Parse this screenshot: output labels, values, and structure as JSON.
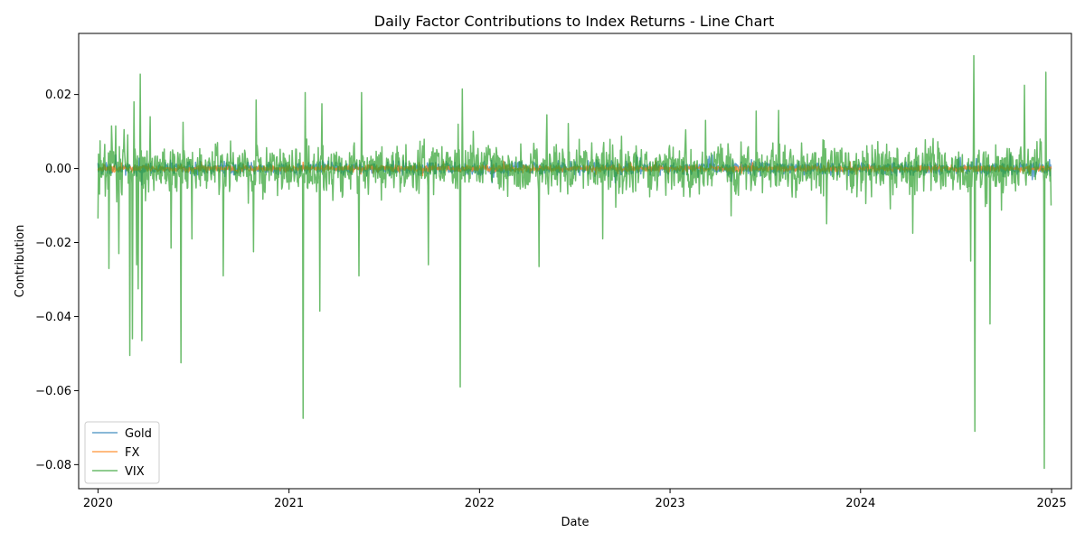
{
  "chart_data": {
    "type": "line",
    "title": "Daily Factor Contributions to Index Returns - Line Chart",
    "xlabel": "Date",
    "ylabel": "Contribution",
    "xlim": [
      "2019-11-25",
      "2025-02-08"
    ],
    "ylim": [
      -0.0865,
      0.0365
    ],
    "x_ticks": [
      {
        "date": "2020-01-01",
        "label": "2020"
      },
      {
        "date": "2021-01-01",
        "label": "2021"
      },
      {
        "date": "2022-01-01",
        "label": "2022"
      },
      {
        "date": "2023-01-01",
        "label": "2023"
      },
      {
        "date": "2024-01-01",
        "label": "2024"
      },
      {
        "date": "2025-01-01",
        "label": "2025"
      }
    ],
    "y_ticks": [
      {
        "value": 0.02,
        "label": "0.02"
      },
      {
        "value": 0.0,
        "label": "0.00"
      },
      {
        "value": -0.02,
        "label": "−0.02"
      },
      {
        "value": -0.04,
        "label": "−0.04"
      },
      {
        "value": -0.06,
        "label": "−0.06"
      },
      {
        "value": -0.08,
        "label": "−0.08"
      }
    ],
    "grid": false,
    "legend_position": "bottom-left",
    "date_range": [
      "2020-01-01",
      "2024-12-31"
    ],
    "series": [
      {
        "name": "Gold",
        "color": "#1f77b4",
        "typical_amplitude": 0.0012,
        "points": [
          {
            "x": "2020-01-01",
            "y": 0.0015
          },
          {
            "x": "2020-03-20",
            "y": 0.0028
          },
          {
            "x": "2020-07-15",
            "y": 0.002
          },
          {
            "x": "2021-03-01",
            "y": 0.0018
          },
          {
            "x": "2022-01-10",
            "y": 0.002
          },
          {
            "x": "2023-03-15",
            "y": 0.0025
          },
          {
            "x": "2024-07-10",
            "y": 0.003
          },
          {
            "x": "2024-11-25",
            "y": -0.003
          }
        ]
      },
      {
        "name": "FX",
        "color": "#ff7f0e",
        "typical_amplitude": 0.0006,
        "points": [
          {
            "x": "2020-01-01",
            "y": -0.0005
          },
          {
            "x": "2020-02-15",
            "y": 0.0015
          },
          {
            "x": "2021-02-10",
            "y": -0.001
          },
          {
            "x": "2022-10-15",
            "y": 0.0015
          },
          {
            "x": "2024-11-20",
            "y": -0.0015
          }
        ]
      },
      {
        "name": "VIX",
        "color": "#2ca02c",
        "typical_amplitude": 0.0045,
        "points": [
          {
            "x": "2020-01-01",
            "y": -0.0135
          },
          {
            "x": "2020-01-05",
            "y": 0.0075
          },
          {
            "x": "2020-01-22",
            "y": -0.027
          },
          {
            "x": "2020-01-27",
            "y": 0.0115
          },
          {
            "x": "2020-02-04",
            "y": 0.0115
          },
          {
            "x": "2020-02-10",
            "y": -0.023
          },
          {
            "x": "2020-02-20",
            "y": 0.0105
          },
          {
            "x": "2020-03-02",
            "y": -0.0505
          },
          {
            "x": "2020-03-07",
            "y": -0.046
          },
          {
            "x": "2020-03-10",
            "y": 0.018
          },
          {
            "x": "2020-03-15",
            "y": -0.026
          },
          {
            "x": "2020-03-18",
            "y": -0.0325
          },
          {
            "x": "2020-03-22",
            "y": 0.0255
          },
          {
            "x": "2020-03-25",
            "y": -0.0465
          },
          {
            "x": "2020-04-10",
            "y": 0.014
          },
          {
            "x": "2020-05-20",
            "y": -0.0215
          },
          {
            "x": "2020-06-08",
            "y": -0.0525
          },
          {
            "x": "2020-06-12",
            "y": 0.0125
          },
          {
            "x": "2020-08-28",
            "y": -0.029
          },
          {
            "x": "2020-10-25",
            "y": -0.0225
          },
          {
            "x": "2020-10-30",
            "y": 0.0185
          },
          {
            "x": "2021-01-28",
            "y": -0.0675
          },
          {
            "x": "2021-02-01",
            "y": 0.0205
          },
          {
            "x": "2021-03-01",
            "y": -0.0385
          },
          {
            "x": "2021-03-05",
            "y": 0.0175
          },
          {
            "x": "2021-05-15",
            "y": -0.029
          },
          {
            "x": "2021-05-20",
            "y": 0.0205
          },
          {
            "x": "2021-09-25",
            "y": -0.026
          },
          {
            "x": "2021-11-25",
            "y": -0.059
          },
          {
            "x": "2021-11-29",
            "y": 0.0215
          },
          {
            "x": "2022-04-25",
            "y": -0.0265
          },
          {
            "x": "2022-05-10",
            "y": 0.0145
          },
          {
            "x": "2022-08-25",
            "y": -0.019
          },
          {
            "x": "2023-03-10",
            "y": 0.013
          },
          {
            "x": "2023-06-15",
            "y": 0.0155
          },
          {
            "x": "2024-04-10",
            "y": -0.0175
          },
          {
            "x": "2024-07-30",
            "y": -0.025
          },
          {
            "x": "2024-08-05",
            "y": 0.0305
          },
          {
            "x": "2024-08-07",
            "y": -0.071
          },
          {
            "x": "2024-09-05",
            "y": -0.042
          },
          {
            "x": "2024-11-10",
            "y": 0.0225
          },
          {
            "x": "2024-12-18",
            "y": -0.081
          },
          {
            "x": "2024-12-21",
            "y": 0.026
          },
          {
            "x": "2024-12-31",
            "y": -0.01
          }
        ]
      }
    ]
  }
}
